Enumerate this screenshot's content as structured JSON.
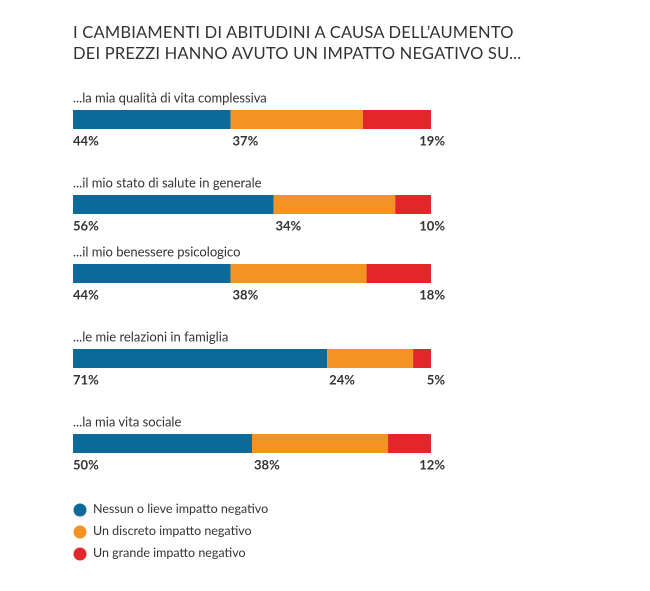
{
  "chart_data": {
    "type": "stacked-bar",
    "orientation": "horizontal",
    "title": "I CAMBIAMENTI DI ABITUDINI A CAUSA DELL’AUMENTO DEI PREZZI HANNO AVUTO UN IMPATTO NEGATIVO SU...",
    "categories": [
      "...la mia qualità di vita complessiva",
      "...il mio stato di salute in generale",
      "...il mio benessere psicologico",
      "...le mie relazioni in famiglia",
      "...la mia vita sociale"
    ],
    "xlim": [
      0,
      100
    ],
    "series": [
      {
        "name": "Nessun o lieve impatto negativo",
        "color": "#0b6a99",
        "values": [
          44,
          56,
          44,
          71,
          50
        ],
        "value_labels": [
          "44%",
          "56%",
          "44%",
          "71%",
          "50%"
        ]
      },
      {
        "name": "Un discreto impatto negativo",
        "color": "#f39324",
        "values": [
          37,
          34,
          38,
          24,
          38
        ],
        "value_labels": [
          "37%",
          "34%",
          "38%",
          "24%",
          "38%"
        ]
      },
      {
        "name": "Un grande impatto negativo",
        "color": "#e3262a",
        "values": [
          19,
          10,
          18,
          5,
          12
        ],
        "value_labels": [
          "19%",
          "10%",
          "18%",
          "5%",
          "12%"
        ]
      }
    ]
  }
}
